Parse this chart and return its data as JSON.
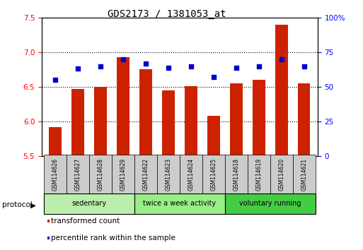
{
  "title": "GDS2173 / 1381053_at",
  "samples": [
    "GSM114626",
    "GSM114627",
    "GSM114628",
    "GSM114629",
    "GSM114622",
    "GSM114623",
    "GSM114624",
    "GSM114625",
    "GSM114618",
    "GSM114619",
    "GSM114620",
    "GSM114621"
  ],
  "transformed_count": [
    5.92,
    6.47,
    6.5,
    6.93,
    6.75,
    6.45,
    6.51,
    6.08,
    6.55,
    6.6,
    7.4,
    6.55
  ],
  "percentile_rank": [
    55,
    63,
    65,
    70,
    67,
    64,
    65,
    57,
    64,
    65,
    70,
    65
  ],
  "bar_color": "#cc2200",
  "dot_color": "#0000cc",
  "ylim_left": [
    5.5,
    7.5
  ],
  "ylim_right": [
    0,
    100
  ],
  "yticks_left": [
    5.5,
    6.0,
    6.5,
    7.0,
    7.5
  ],
  "yticks_right": [
    0,
    25,
    50,
    75,
    100
  ],
  "ytick_labels_right": [
    "0",
    "25",
    "50",
    "75",
    "100%"
  ],
  "groups": [
    {
      "label": "sedentary",
      "indices": [
        0,
        1,
        2,
        3
      ],
      "color": "#bbeeaa"
    },
    {
      "label": "twice a week activity",
      "indices": [
        4,
        5,
        6,
        7
      ],
      "color": "#99ee88"
    },
    {
      "label": "voluntary running",
      "indices": [
        8,
        9,
        10,
        11
      ],
      "color": "#44cc44"
    }
  ],
  "protocol_label": "protocol",
  "legend_bar_label": "transformed count",
  "legend_dot_label": "percentile rank within the sample",
  "bar_bottom": 5.5,
  "bar_width": 0.55,
  "sample_box_color": "#cccccc",
  "grid_linestyle": "dotted"
}
